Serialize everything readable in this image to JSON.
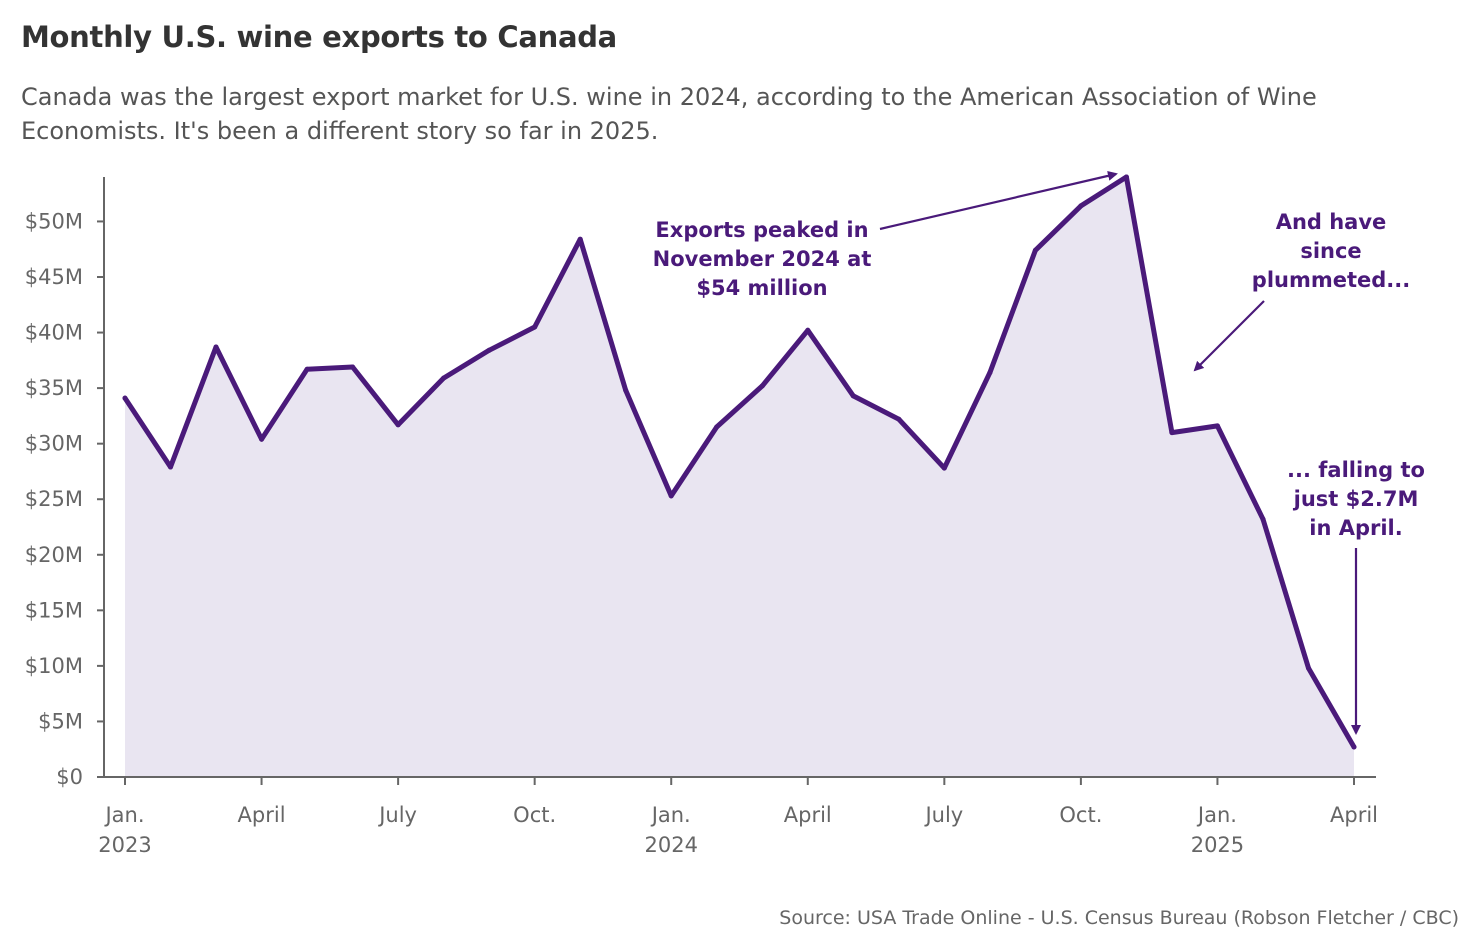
{
  "title": "Monthly U.S. wine exports to Canada",
  "subtitle": "Canada was the largest export market for U.S. wine in 2024, according to the American Association of Wine Economists. It's been a different story so far in 2025.",
  "source": "Source: USA Trade Online - U.S. Census Bureau (Robson Fletcher / CBC)",
  "colors": {
    "line": "#4a1a7a",
    "area": "#e9e5f1",
    "axis": "#666666",
    "annotation": "#4a1a7a"
  },
  "chart_data": {
    "type": "area",
    "title": "Monthly U.S. wine exports to Canada",
    "xlabel": "",
    "ylabel": "",
    "ylim": [
      0,
      54
    ],
    "y_unit": "millions of USD",
    "grid": false,
    "y_ticks": [
      {
        "value": 0,
        "label": "$0"
      },
      {
        "value": 5,
        "label": "$5M"
      },
      {
        "value": 10,
        "label": "$10M"
      },
      {
        "value": 15,
        "label": "$15M"
      },
      {
        "value": 20,
        "label": "$20M"
      },
      {
        "value": 25,
        "label": "$25M"
      },
      {
        "value": 30,
        "label": "$30M"
      },
      {
        "value": 35,
        "label": "$35M"
      },
      {
        "value": 40,
        "label": "$40M"
      },
      {
        "value": 45,
        "label": "$45M"
      },
      {
        "value": 50,
        "label": "$50M"
      }
    ],
    "x_ticks": [
      {
        "index": 0,
        "label": "Jan.",
        "year": "2023"
      },
      {
        "index": 3,
        "label": "April",
        "year": ""
      },
      {
        "index": 6,
        "label": "July",
        "year": ""
      },
      {
        "index": 9,
        "label": "Oct.",
        "year": ""
      },
      {
        "index": 12,
        "label": "Jan.",
        "year": "2024"
      },
      {
        "index": 15,
        "label": "April",
        "year": ""
      },
      {
        "index": 18,
        "label": "July",
        "year": ""
      },
      {
        "index": 21,
        "label": "Oct.",
        "year": ""
      },
      {
        "index": 24,
        "label": "Jan.",
        "year": "2025"
      },
      {
        "index": 27,
        "label": "April",
        "year": ""
      }
    ],
    "x": [
      "2023-01",
      "2023-02",
      "2023-03",
      "2023-04",
      "2023-05",
      "2023-06",
      "2023-07",
      "2023-08",
      "2023-09",
      "2023-10",
      "2023-11",
      "2023-12",
      "2024-01",
      "2024-02",
      "2024-03",
      "2024-04",
      "2024-05",
      "2024-06",
      "2024-07",
      "2024-08",
      "2024-09",
      "2024-10",
      "2024-11",
      "2024-12",
      "2025-01",
      "2025-02",
      "2025-03",
      "2025-04"
    ],
    "series": [
      {
        "values": [
          34.1,
          27.9,
          38.7,
          30.4,
          36.7,
          36.9,
          31.7,
          35.9,
          38.4,
          40.5,
          48.4,
          34.8,
          25.3,
          31.5,
          35.2,
          40.2,
          34.3,
          32.2,
          27.8,
          36.4,
          47.4,
          51.4,
          54.0,
          31.0,
          31.6,
          23.2,
          9.8,
          2.7
        ]
      }
    ],
    "annotations": [
      {
        "id": "peak",
        "lines": [
          "Exports peaked in",
          "November 2024 at",
          "$54 million"
        ],
        "target_index": 22
      },
      {
        "id": "drop",
        "lines": [
          "And have",
          "since",
          "plummeted..."
        ],
        "target_index": 23
      },
      {
        "id": "april",
        "lines": [
          "... falling to",
          "just $2.7M",
          "in April."
        ],
        "target_index": 27
      }
    ]
  }
}
